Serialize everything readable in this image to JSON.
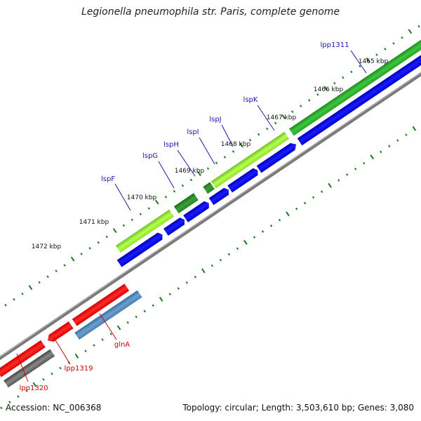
{
  "title": "Legionella pneumophila str. Paris, complete genome",
  "accession_text": "Accession: NC_006368",
  "summary_text": "Topology: circular; Length: 3,503,610 bp; Genes: 3,080",
  "colors": {
    "forward_green": "#2fb52f",
    "forward_lightgreen": "#a6f03a",
    "forward_darkgreen": "#2e8b2e",
    "forward_blue": "#0000dd",
    "reverse_red": "#ee0000",
    "reverse_steelblue": "#4682b4",
    "reverse_gray": "#5a5a5a",
    "backbone": "#777777",
    "tick": "#1b7a1b",
    "label_forward": "#1a1aa6",
    "label_reverse": "#cc0000"
  },
  "ruler": {
    "unit": "kbp",
    "tick_labels": [
      "1465 kbp",
      "1466 kbp",
      "1467 kbp",
      "1468 kbp",
      "1469 kbp",
      "1470 kbp",
      "1471 kbp",
      "1472 kbp"
    ]
  },
  "genes_forward": [
    {
      "name": "lpp1311",
      "color": "forward_green"
    },
    {
      "name": "lspK",
      "color": "forward_lightgreen"
    },
    {
      "name": "lspJ",
      "color": "forward_darkgreen"
    },
    {
      "name": "lspI",
      "color": "forward_blue"
    },
    {
      "name": "lspH",
      "color": "forward_blue"
    },
    {
      "name": "lspG",
      "color": "forward_darkgreen"
    },
    {
      "name": "lspF",
      "color": "forward_lightgreen"
    }
  ],
  "genes_reverse": [
    {
      "name": "glnA",
      "color": "reverse_steelblue"
    },
    {
      "name": "lpp1319",
      "color": "reverse_red"
    },
    {
      "name": "lpp1320",
      "color": "reverse_red"
    }
  ]
}
